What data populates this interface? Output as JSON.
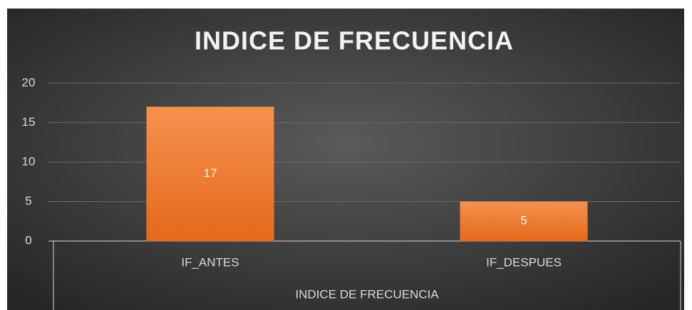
{
  "chart_data": {
    "type": "bar",
    "title": "INDICE DE FRECUENCIA",
    "categories": [
      "IF_ANTES",
      "IF_DESPUES"
    ],
    "values": [
      17,
      5
    ],
    "x_group_label": "INDICE DE FRECUENCIA",
    "color": "#ec7a30",
    "ylim": [
      0,
      20
    ],
    "yticks": [
      0,
      5,
      10,
      15,
      20
    ],
    "grid": true
  }
}
